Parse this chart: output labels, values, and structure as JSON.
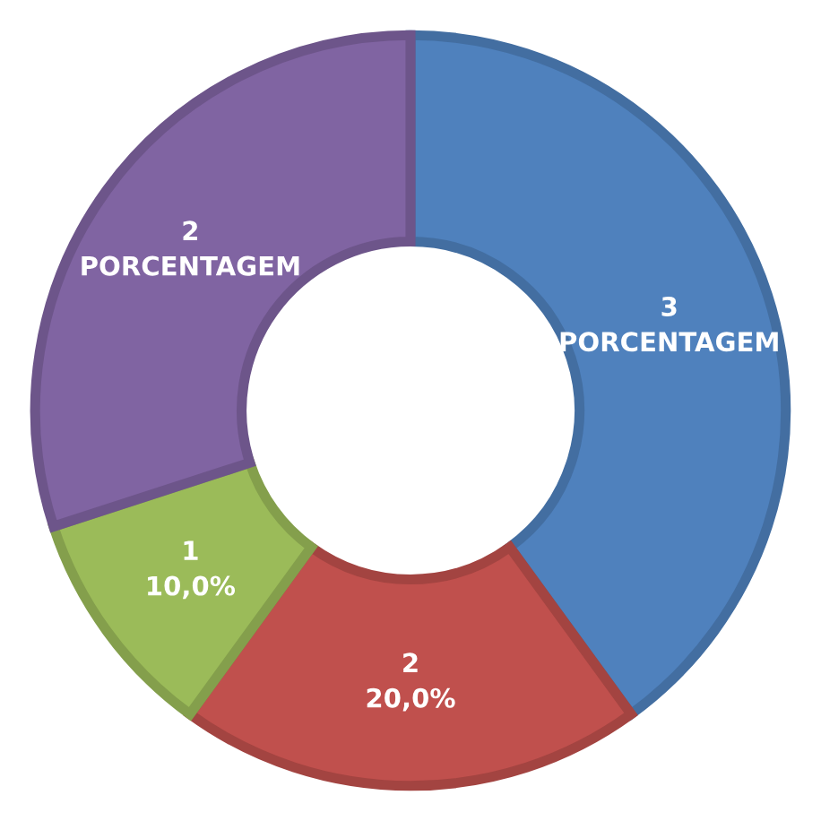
{
  "chart_data": {
    "type": "donut",
    "categories": [
      "3",
      "2",
      "1",
      "2"
    ],
    "values": [
      40,
      20,
      10,
      30
    ],
    "colors": [
      "#4f81bd",
      "#c0504d",
      "#9bbb59",
      "#8064a2"
    ],
    "value_labels": [
      "PORCENTAGEM",
      "20,0%",
      "10,0%",
      "PORCENTAGEM"
    ],
    "legend": false
  }
}
